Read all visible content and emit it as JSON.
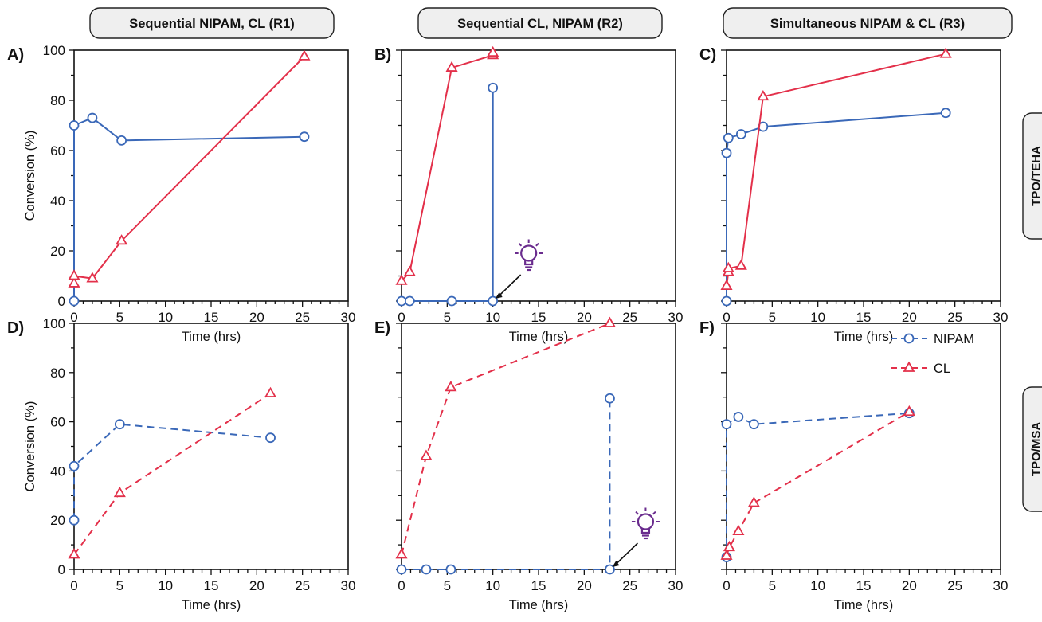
{
  "columns": [
    {
      "title": "Sequential NIPAM, CL (R1)"
    },
    {
      "title": "Sequential CL, NIPAM (R2)"
    },
    {
      "title": "Simultaneous NIPAM & CL (R3)"
    }
  ],
  "rows": [
    {
      "label": "TPO/TEHA"
    },
    {
      "label": "TPO/MSA"
    }
  ],
  "legend": {
    "items": [
      "NIPAM",
      "CL"
    ],
    "placement": "top-right of panel F"
  },
  "colors": {
    "nipam": "#3a68b8",
    "cl": "#e3304a",
    "icon": "#6a2c8e"
  },
  "chart_data": [
    {
      "type": "line",
      "panel_label": "A)",
      "xlabel": "Time (hrs)",
      "ylabel": "Conversion (%)",
      "xlim": [
        0,
        30
      ],
      "ylim": [
        0,
        100
      ],
      "xticks": [
        "0",
        "5",
        "10",
        "15",
        "20",
        "25",
        "30"
      ],
      "yticks": [
        "0",
        "20",
        "40",
        "60",
        "80",
        "100"
      ],
      "series": [
        {
          "name": "NIPAM",
          "line": "solid",
          "points": [
            [
              0,
              0
            ],
            [
              0,
              70
            ],
            [
              2,
              73
            ],
            [
              5.2,
              64
            ],
            [
              25.2,
              65.5
            ]
          ]
        },
        {
          "name": "CL",
          "line": "solid",
          "points": [
            [
              0,
              7
            ],
            [
              0,
              10
            ],
            [
              2,
              9
            ],
            [
              5.2,
              24
            ],
            [
              25.2,
              97.5
            ]
          ]
        }
      ]
    },
    {
      "type": "line",
      "panel_label": "B)",
      "xlabel": "Time (hrs)",
      "ylabel": "",
      "xlim": [
        0,
        30
      ],
      "ylim": [
        0,
        100
      ],
      "xticks": [
        "0",
        "5",
        "10",
        "15",
        "20",
        "25",
        "30"
      ],
      "yticks": [],
      "series": [
        {
          "name": "NIPAM",
          "line": "solid",
          "points": [
            [
              0,
              0
            ],
            [
              0.9,
              0
            ],
            [
              5.5,
              0
            ],
            [
              10,
              0
            ],
            [
              10,
              85
            ]
          ]
        },
        {
          "name": "CL",
          "line": "solid",
          "points": [
            [
              0,
              8
            ],
            [
              0.9,
              11.5
            ],
            [
              5.5,
              93
            ],
            [
              10,
              98
            ],
            [
              10,
              99
            ]
          ]
        }
      ],
      "annotation": {
        "icon": "light-bulb",
        "x": 10,
        "y": 0
      }
    },
    {
      "type": "line",
      "panel_label": "C)",
      "xlabel": "Time (hrs)",
      "ylabel": "",
      "xlim": [
        0,
        30
      ],
      "ylim": [
        0,
        100
      ],
      "xticks": [
        "0",
        "5",
        "10",
        "15",
        "20",
        "25",
        "30"
      ],
      "yticks": [],
      "series": [
        {
          "name": "NIPAM",
          "line": "solid",
          "points": [
            [
              0,
              0
            ],
            [
              0,
              59
            ],
            [
              0.2,
              65
            ],
            [
              1.6,
              66.5
            ],
            [
              4,
              69.5
            ],
            [
              24,
              75
            ]
          ]
        },
        {
          "name": "CL",
          "line": "solid",
          "points": [
            [
              0,
              6
            ],
            [
              0.2,
              11.5
            ],
            [
              0.2,
              13
            ],
            [
              1.6,
              14
            ],
            [
              4,
              81.5
            ],
            [
              24,
              98.5
            ]
          ]
        }
      ]
    },
    {
      "type": "line",
      "panel_label": "D)",
      "xlabel": "Time (hrs)",
      "ylabel": "Conversion (%)",
      "xlim": [
        0,
        30
      ],
      "ylim": [
        0,
        100
      ],
      "xticks": [
        "0",
        "5",
        "10",
        "15",
        "20",
        "25",
        "30"
      ],
      "yticks": [
        "0",
        "20",
        "40",
        "60",
        "80",
        "100"
      ],
      "series": [
        {
          "name": "NIPAM",
          "line": "dashed",
          "points": [
            [
              0,
              20
            ],
            [
              0,
              42
            ],
            [
              5,
              59
            ],
            [
              21.5,
              53.5
            ]
          ]
        },
        {
          "name": "CL",
          "line": "dashed",
          "points": [
            [
              0,
              6
            ],
            [
              5,
              31
            ],
            [
              21.5,
              71.5
            ]
          ]
        }
      ]
    },
    {
      "type": "line",
      "panel_label": "E)",
      "xlabel": "Time (hrs)",
      "ylabel": "",
      "xlim": [
        0,
        30
      ],
      "ylim": [
        0,
        100
      ],
      "xticks": [
        "0",
        "5",
        "10",
        "15",
        "20",
        "25",
        "30"
      ],
      "yticks": [],
      "series": [
        {
          "name": "NIPAM",
          "line": "dashed",
          "points": [
            [
              0,
              0
            ],
            [
              2.7,
              0
            ],
            [
              5.4,
              0
            ],
            [
              22.8,
              0
            ],
            [
              22.8,
              69.5
            ]
          ]
        },
        {
          "name": "CL",
          "line": "dashed",
          "points": [
            [
              0,
              6
            ],
            [
              2.7,
              46
            ],
            [
              5.4,
              74
            ],
            [
              22.8,
              100
            ]
          ]
        }
      ],
      "annotation": {
        "icon": "light-bulb",
        "x": 22.8,
        "y": 0
      }
    },
    {
      "type": "line",
      "panel_label": "F)",
      "xlabel": "Time (hrs)",
      "ylabel": "",
      "xlim": [
        0,
        30
      ],
      "ylim": [
        0,
        100
      ],
      "xticks": [
        "0",
        "5",
        "10",
        "15",
        "20",
        "25",
        "30"
      ],
      "yticks": [],
      "series": [
        {
          "name": "NIPAM",
          "line": "dashed",
          "points": [
            [
              0,
              5
            ],
            [
              0,
              59
            ],
            [
              1.3,
              62
            ],
            [
              3,
              59
            ],
            [
              20,
              63.5
            ]
          ]
        },
        {
          "name": "CL",
          "line": "dashed",
          "points": [
            [
              0,
              5.5
            ],
            [
              0.3,
              9
            ],
            [
              1.3,
              15.5
            ],
            [
              3,
              27
            ],
            [
              20,
              64
            ]
          ]
        }
      ]
    }
  ]
}
